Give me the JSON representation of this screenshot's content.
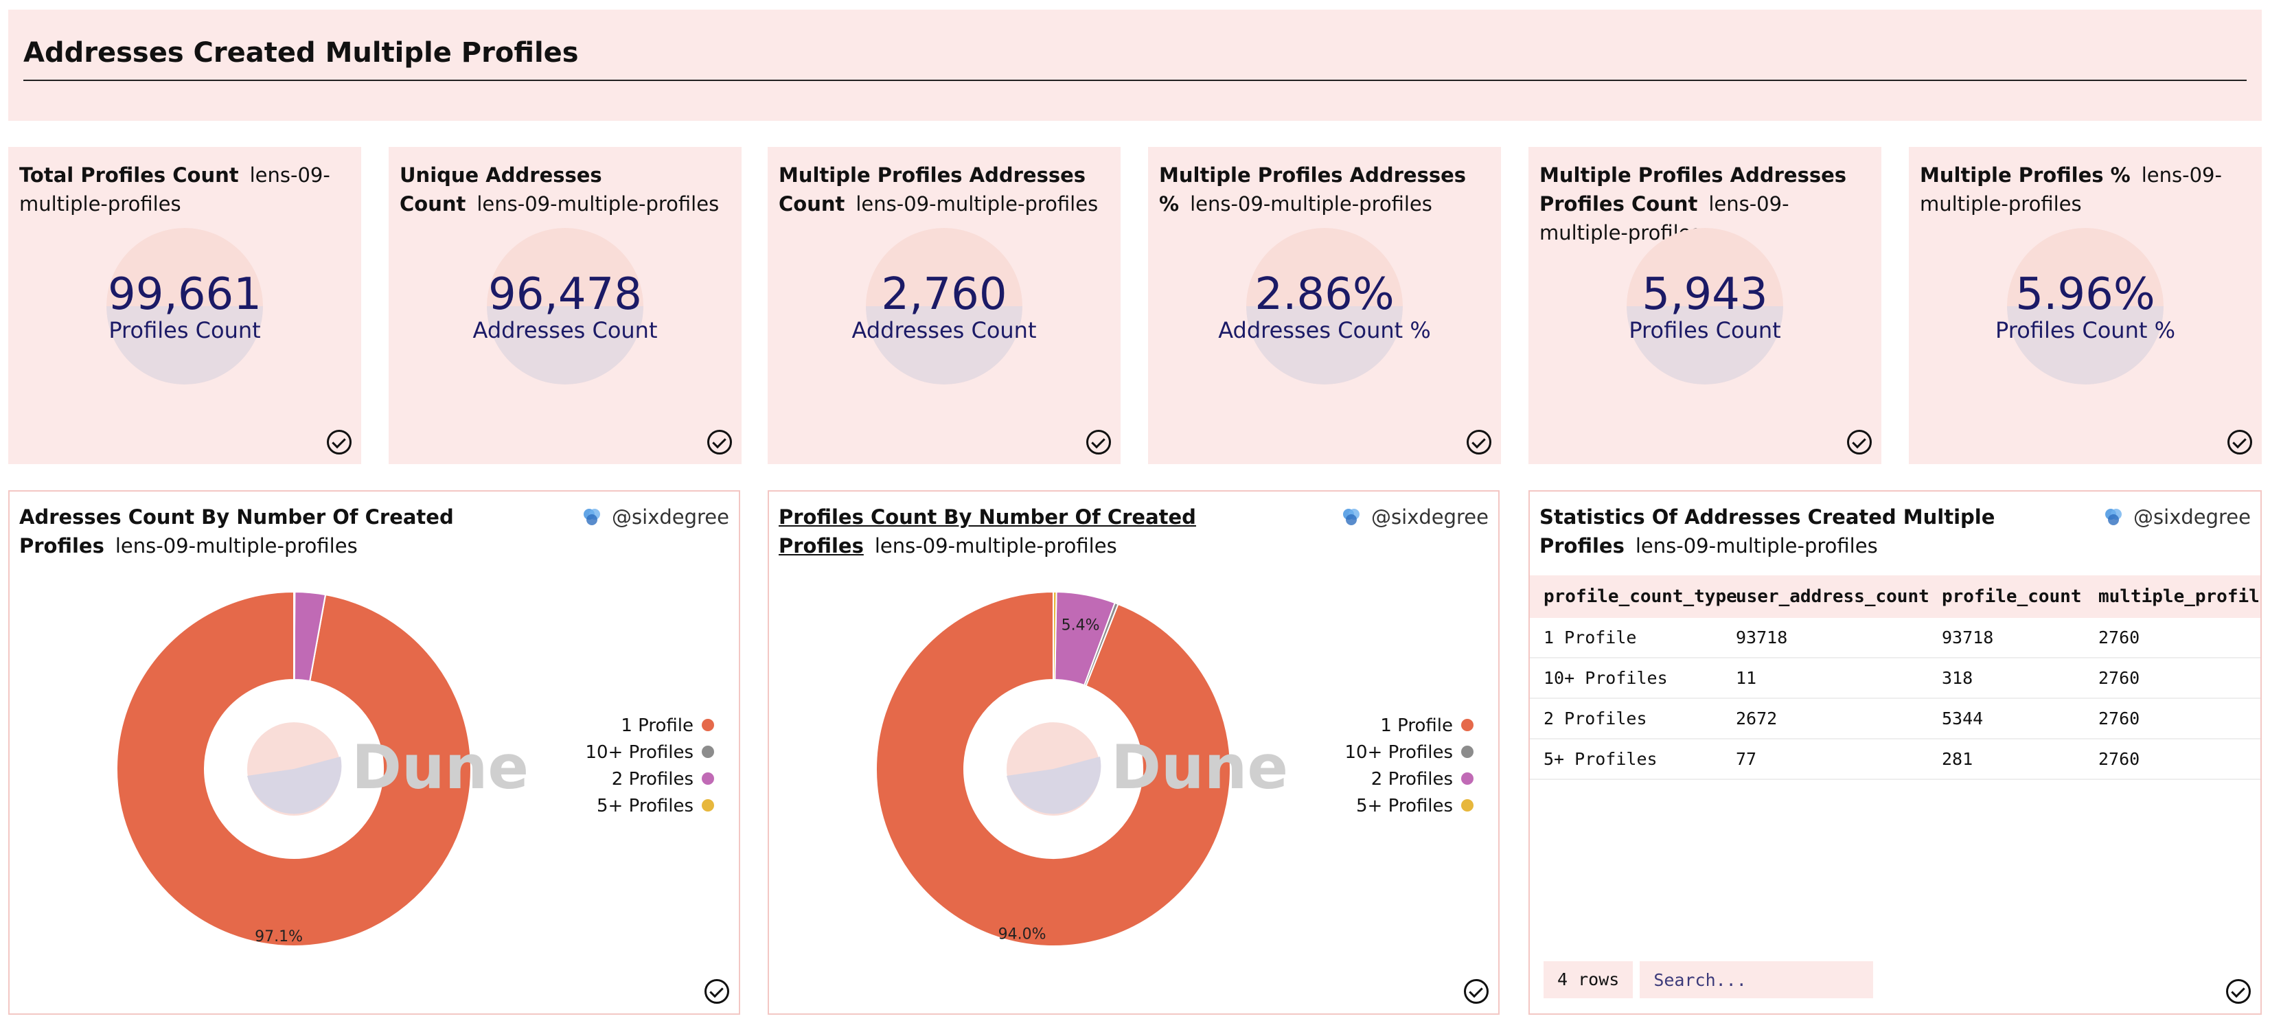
{
  "page": {
    "title": "Addresses Created Multiple Profiles"
  },
  "counters": [
    {
      "title": "Total Profiles Count",
      "query": "lens-09-multiple-profiles",
      "value": "99,661",
      "label": "Profiles Count"
    },
    {
      "title": "Unique Addresses Count",
      "query": "lens-09-multiple-profiles",
      "value": "96,478",
      "label": "Addresses Count"
    },
    {
      "title": "Multiple Profiles Addresses Count",
      "query": "lens-09-multiple-profiles",
      "value": "2,760",
      "label": "Addresses Count"
    },
    {
      "title": "Multiple Profiles Addresses %",
      "query": "lens-09-multiple-profiles",
      "value": "2.86%",
      "label": "Addresses Count %"
    },
    {
      "title": "Multiple Profiles Addresses Profiles Count",
      "query": "lens-09-multiple-profiles",
      "value": "5,943",
      "label": "Profiles Count"
    },
    {
      "title": "Multiple Profiles %",
      "query": "lens-09-multiple-profiles",
      "value": "5.96%",
      "label": "Profiles Count %"
    }
  ],
  "charts": [
    {
      "title": "Adresses Count By Number Of Created Profiles",
      "query": "lens-09-multiple-profiles",
      "author": "@sixdegree",
      "watermark": "Dune"
    },
    {
      "title": "Profiles Count By Number Of Created Profiles",
      "query": "lens-09-multiple-profiles",
      "author": "@sixdegree",
      "watermark": "Dune"
    }
  ],
  "chart_data": [
    {
      "type": "pie",
      "categories": [
        "1 Profile",
        "10+ Profiles",
        "2 Profiles",
        "5+ Profiles"
      ],
      "values": [
        93718,
        11,
        2672,
        77
      ],
      "labels_shown": [
        "97.1%",
        "",
        "",
        ""
      ],
      "colors": [
        "#e5694a",
        "#8c8c8c",
        "#c06ab5",
        "#e7b73c"
      ],
      "legend": "right"
    },
    {
      "type": "pie",
      "categories": [
        "1 Profile",
        "10+ Profiles",
        "2 Profiles",
        "5+ Profiles"
      ],
      "values": [
        93718,
        318,
        5344,
        281
      ],
      "labels_shown": [
        "94.0%",
        "",
        "5.4%",
        ""
      ],
      "colors": [
        "#e5694a",
        "#8c8c8c",
        "#c06ab5",
        "#e7b73c"
      ],
      "legend": "right"
    }
  ],
  "table": {
    "title": "Statistics Of Addresses Created Multiple Profiles",
    "query": "lens-09-multiple-profiles",
    "author": "@sixdegree",
    "columns": [
      "profile_count_type",
      "user_address_count",
      "profile_count",
      "multiple_profil"
    ],
    "rows": [
      [
        "1 Profile",
        "93718",
        "93718",
        "2760"
      ],
      [
        "10+ Profiles",
        "11",
        "318",
        "2760"
      ],
      [
        "2 Profiles",
        "2672",
        "5344",
        "2760"
      ],
      [
        "5+ Profiles",
        "77",
        "281",
        "2760"
      ]
    ],
    "row_count": "4 rows",
    "search_placeholder": "Search..."
  },
  "colors": {
    "accent_bg": "#fce9e8",
    "counter_text": "#1b1a66",
    "border": "#f3c7c4"
  }
}
